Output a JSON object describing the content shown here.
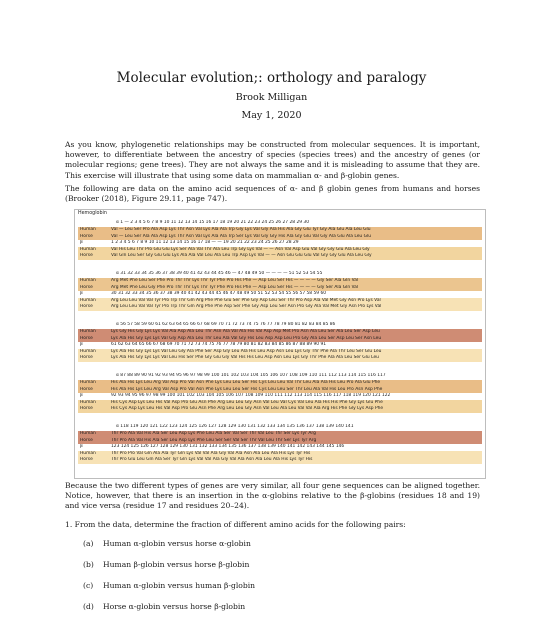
{
  "title": "Molecular evolution;: orthology and paralogy",
  "author": "Brook Milligan",
  "date": "May 1, 2020",
  "intro": "As you know, phylogenetic relationships may be constructed from molecular sequences. It is important, however, to differentiate between the ancestry of species (species trees) and the ancestry of genes (or molecular regions; gene trees). They are not always the same and it is misleading to assume that they are. This exercise will illustrate that using some data on mammalian α- and β-globin genes.",
  "data_intro": "The following are data on the amino acid sequences of α- and β globin genes from humans and horses (Brooker (2018), Figure 29.11, page 747).",
  "figure": {
    "title": "Hemoglobin",
    "blocks": [
      {
        "numbers": "α     1  —  2  3  4  5  6  7  8  9  10  11  12  13  14  15  16  17  18  19  20  21  22  23  24  25  26  27  28  29  30",
        "rows": [
          {
            "label": "Human",
            "seq": "Val  —  Leu Ser Pro Ala Asp Lys Thr Asn Val Lys Ala Ala Trp Gly Lys Val Gly Ala His Ala Gly Glu Tyr Gly Ala Glu Ala Leu Glu"
          },
          {
            "label": "Horse",
            "seq": "Val  —  Leu Ser Ala Ala Asp Lys Thr Asn Val Lys Ala Ala Trp Ser Lys Val Gly Gly His Ala Gly Glu Val Gly Ala Glu Ala Leu Glu"
          },
          {
            "label": "β",
            "seq": "1  2  3  4  5  6  7  8  9  10  11  12  13  14  15  16  17  18  —  —  19  20  21  22  23  24  25  26  27  28  29"
          },
          {
            "label": "Human",
            "seq": "Val His Leu Thr Pro Glu Glu Lys Ser Ala Val Thr Ala Leu Trp Gly Lys Val  —  —  Asn Val Asp Glu Val Gly Gly Glu Ala Leu Gly"
          },
          {
            "label": "Horse",
            "seq": "Val Gln Leu Ser Gly Glu Glu Lys Ala Ala Val Leu Ala Leu Trp Asp Lys Val  —  —  Asn Glu Glu Glu Val Gly Gly Glu Ala Leu Gly"
          }
        ]
      },
      {
        "numbers": "α    31  32  33  34  35  36  37  38  39  40  41  42  43  44  45  46  —  47  48  49  50  —  —  —  —  51  52  53  54  55",
        "rows": [
          {
            "label": "Human",
            "seq": "Arg Met Phe Leu Ser Phe Pro Thr Thr Lys Thr Tyr Phe Pro His Phe  —  Asp Leu Ser His  —  —  —  —  Gly Ser Ala Gln Val"
          },
          {
            "label": "Horse",
            "seq": "Arg Met Phe Leu Gly Phe Pro Thr Thr Lys Thr Tyr Phe Pro His Phe  —  Asp Leu Ser His  —  —  —  —  Gly Ser Ala Gln Val"
          },
          {
            "label": "β",
            "seq": "30  31  32  33  34  35  36  37  38  39  40  41  42  43  44  45  46  47  48  49  50  51  52  53  54  55  56  57  58  59  60"
          },
          {
            "label": "Human",
            "seq": "Arg Leu Leu Val Val Tyr Pro Trp Thr Gln Arg Phe Phe Glu Ser Phe Gly Asp Leu Ser Thr Pro Asp Ala Val Met Gly Asn Pro Lys Val"
          },
          {
            "label": "Horse",
            "seq": "Arg Leu Leu Val Val Tyr Pro Trp Thr Gln Arg Phe Phe Asp Ser Phe Gly Asp Leu Ser Asn Pro Gly Ala Val Met Gly Asn Pro Lys Val"
          }
        ]
      },
      {
        "numbers": "α    56  57  58  59  60  61  62  63  64  65  66  67  68  69  70  71  72  73  74  75  76  77  78  79  80  81  82  83  84  85  86",
        "rows": [
          {
            "label": "Human",
            "seq": "Lys Gly His Gly Lys Lys Val Ala Asp Ala Leu Thr Asn Ala Val Ala His Val Asp Asp Met Pro Asn Ala Leu Ser Ala Leu Ser Asp Leu"
          },
          {
            "label": "Horse",
            "seq": "Lys Ala His Gly Lys Lys Val Gly Asp Ala Leu Thr Leu Ala Val Gly His Leu Asp Asp Leu Pro Gly Ala Leu Ser Asp Leu Ser Asn Leu"
          },
          {
            "label": "β",
            "seq": "61  62  63  64  65  66  67  68  69  70  71  72  73  74  75  76  77  78  79  80  81  82  83  84  85  86  87  88  89  90  91"
          },
          {
            "label": "Human",
            "seq": "Lys Ala His Gly Lys Lys Val Leu Gly Ala Phe Ser Asp Gly Leu Ala His Leu Asp Asn Leu Lys Gly Thr Phe Ala Thr Leu Ser Glu Leu"
          },
          {
            "label": "Horse",
            "seq": "Lys Ala His Gly Lys Lys Val Leu His Ser Phe Gly Glu Gly Val His His Leu Asp Asn Leu Lys Gly Thr Phe Ala Ala Leu Ser Glu Leu"
          }
        ]
      },
      {
        "numbers": "α    87  88  89  90  91  92  93  94  95  96  97  98  99  100  101  102  103  104  105  106  107  108  109  110  111  112  113  114  115  116  117",
        "rows": [
          {
            "label": "Human",
            "seq": "His Ala His Lys Leu Arg Val Asp Pro Val Asn Phe Lys Leu Leu Ser His Cys Leu Leu Val Thr Leu Ala Ala His Leu Pro Ala Glu Phe"
          },
          {
            "label": "Horse",
            "seq": "His Ala His Lys Leu Arg Val Asp Pro Val Asn Phe Lys Leu Leu Ser His Cys Leu Leu Ser Thr Leu Ala Val His Leu Pro Asn Asp Phe"
          },
          {
            "label": "β",
            "seq": "92  93  94  95  96  97  98  99  100  101  102  103  104  105  106  107  108  109  110  111  112  113  114  115  116  117  118  119  120  121  122"
          },
          {
            "label": "Human",
            "seq": "His Cys Asp Lys Leu His Val Asp Pro Glu Asn Phe Arg Leu Leu Gly Asn Val Leu Val Cys Val Leu Ala His His Phe Gly Lys Glu Phe"
          },
          {
            "label": "Horse",
            "seq": "His Cys Asp Lys Leu His Val Asp Pro Glu Asn Phe Arg Leu Leu Gly Asn Val Leu Ala Leu Val Val Ala Arg His Phe Gly Lys Asp Phe"
          }
        ]
      },
      {
        "numbers": "α    118  119  120  121  122  123  124  125  126  127  128  129  130  131  132  133  134  135  136  137  138  139  140  141",
        "rows": [
          {
            "label": "Human",
            "seq": "Thr Pro Ala Val His Ala Ser Leu Asp Lys Phe Leu Ala Ser Val Ser Thr Val Leu Thr Ser Lys Tyr Arg"
          },
          {
            "label": "Horse",
            "seq": "Thr Pro Ala Val His Ala Ser Leu Asp Lys Phe Leu Ser Ser Val Ser Thr Val Leu Thr Ser Lys Tyr Arg"
          },
          {
            "label": "β",
            "seq": "123  124  125  126  127  128  129  130  131  132  133  134  135  136  137  138  139  140  141  142  143  144  145  146"
          },
          {
            "label": "Human",
            "seq": "Thr Pro Pro Val Gln Ala Ala Tyr Gln Lys Val Val Ala Gly Val Ala Asn Ala Leu Ala His Lys Tyr His"
          },
          {
            "label": "Horse",
            "seq": "Thr Pro Glu Leu Gln Ala Ser Tyr Gln Lys Val Val Ala Gly Val Ala Asn Ala Leu Ala His Lys Tyr His"
          }
        ]
      }
    ]
  },
  "after_figure": "Because the two different types of genes are very similar, all four gene sequences can be aligned together. Notice, however, that there is an insertion in the α-globins relative to the β-globins (residues 18 and 19) and vice versa (residue 17 and residues 20–24).",
  "question": {
    "number": "1.",
    "text": "From the data, determine the fraction of different amino acids for the following pairs:",
    "items": [
      {
        "label": "(a)",
        "text": "Human α-globin versus horse α-globin"
      },
      {
        "label": "(b)",
        "text": "Human β-globin versus horse β-globin"
      },
      {
        "label": "(c)",
        "text": "Human α-globin versus human β-globin"
      },
      {
        "label": "(d)",
        "text": "Horse α-globin versus horse β-globin"
      }
    ]
  }
}
